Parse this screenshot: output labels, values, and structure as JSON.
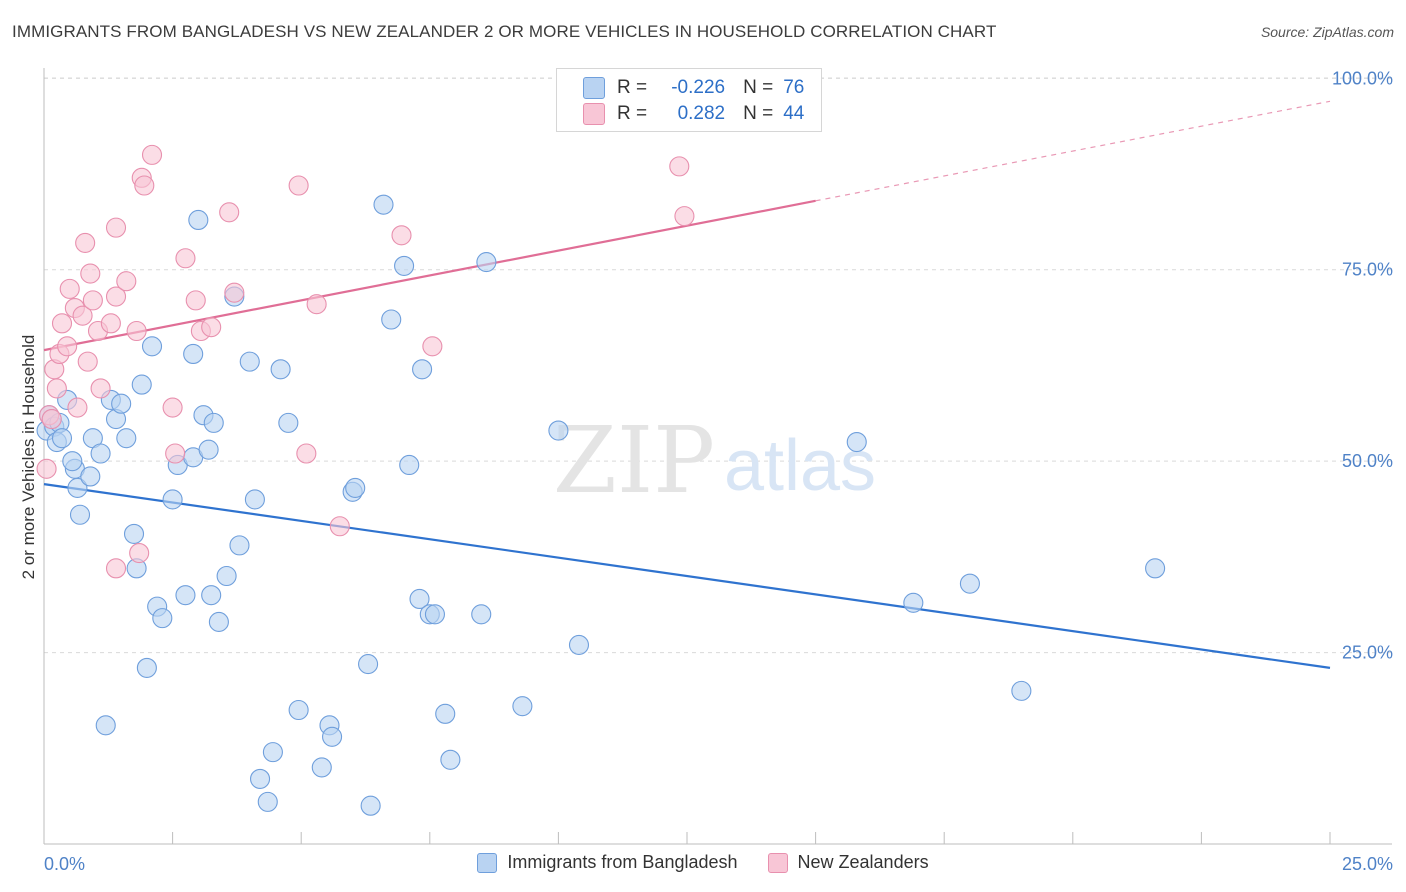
{
  "title": "IMMIGRANTS FROM BANGLADESH VS NEW ZEALANDER 2 OR MORE VEHICLES IN HOUSEHOLD CORRELATION CHART",
  "source": "Source: ZipAtlas.com",
  "watermark": {
    "zip": "ZIP",
    "atlas": "atlas"
  },
  "stats": {
    "r_label": "R =",
    "n_label": "N =",
    "rows": [
      {
        "r": "-0.226",
        "n": "76"
      },
      {
        "r": "0.282",
        "n": "44"
      }
    ]
  },
  "colors": {
    "blue_fill": "#b9d3f2",
    "blue_stroke": "#6f9fdc",
    "blue_line": "#2f73cf",
    "pink_fill": "#f8c6d6",
    "pink_stroke": "#e890ae",
    "pink_line": "#e06e96",
    "axis_text": "#4f82c7"
  },
  "chart_data": {
    "type": "scatter",
    "title": "IMMIGRANTS FROM BANGLADESH VS NEW ZEALANDER 2 OR MORE VEHICLES IN HOUSEHOLD CORRELATION CHART",
    "xlabel": "",
    "ylabel": "2 or more Vehicles in Household",
    "xlim": [
      0,
      25
    ],
    "ylim": [
      0,
      102
    ],
    "x_tick_labels": [
      "0.0%",
      "25.0%"
    ],
    "y_tick_labels": [
      "25.0%",
      "50.0%",
      "75.0%",
      "100.0%"
    ],
    "y_ticks": [
      25,
      50,
      75,
      100
    ],
    "grid": "horizontal dashed",
    "legend_position": "bottom",
    "series": [
      {
        "name": "Immigrants from Bangladesh",
        "r": -0.226,
        "n": 76,
        "trend": {
          "x": [
            0,
            25
          ],
          "y": [
            47.0,
            23.0
          ],
          "dashed_from_x": null
        },
        "points": [
          [
            0.05,
            54.0
          ],
          [
            0.1,
            56.0
          ],
          [
            0.15,
            55.5
          ],
          [
            0.2,
            54.5
          ],
          [
            0.25,
            52.5
          ],
          [
            0.3,
            55.0
          ],
          [
            0.35,
            53.0
          ],
          [
            0.45,
            58.0
          ],
          [
            0.6,
            49.0
          ],
          [
            0.65,
            46.5
          ],
          [
            0.7,
            43.0
          ],
          [
            0.9,
            48.0
          ],
          [
            0.95,
            53.0
          ],
          [
            1.1,
            51.0
          ],
          [
            1.3,
            58.0
          ],
          [
            1.4,
            55.5
          ],
          [
            1.5,
            57.5
          ],
          [
            1.6,
            53.0
          ],
          [
            1.75,
            40.5
          ],
          [
            1.8,
            36.0
          ],
          [
            1.9,
            60.0
          ],
          [
            2.1,
            65.0
          ],
          [
            2.2,
            31.0
          ],
          [
            2.3,
            29.5
          ],
          [
            2.5,
            45.0
          ],
          [
            2.6,
            49.5
          ],
          [
            2.75,
            32.5
          ],
          [
            2.9,
            50.5
          ],
          [
            2.9,
            64.0
          ],
          [
            3.0,
            81.5
          ],
          [
            3.1,
            56.0
          ],
          [
            3.2,
            51.5
          ],
          [
            3.25,
            32.5
          ],
          [
            3.3,
            55.0
          ],
          [
            3.4,
            29.0
          ],
          [
            3.55,
            35.0
          ],
          [
            3.7,
            71.5
          ],
          [
            3.8,
            39.0
          ],
          [
            4.0,
            63.0
          ],
          [
            4.1,
            45.0
          ],
          [
            4.2,
            8.5
          ],
          [
            4.35,
            5.5
          ],
          [
            4.45,
            12.0
          ],
          [
            4.6,
            62.0
          ],
          [
            4.75,
            55.0
          ],
          [
            4.95,
            17.5
          ],
          [
            5.4,
            10.0
          ],
          [
            5.55,
            15.5
          ],
          [
            5.6,
            14.0
          ],
          [
            6.0,
            46.0
          ],
          [
            6.05,
            46.5
          ],
          [
            6.3,
            23.5
          ],
          [
            6.35,
            5.0
          ],
          [
            6.6,
            83.5
          ],
          [
            6.75,
            68.5
          ],
          [
            7.0,
            75.5
          ],
          [
            7.1,
            49.5
          ],
          [
            7.3,
            32.0
          ],
          [
            7.35,
            62.0
          ],
          [
            7.5,
            30.0
          ],
          [
            7.6,
            30.0
          ],
          [
            7.8,
            17.0
          ],
          [
            7.9,
            11.0
          ],
          [
            8.5,
            30.0
          ],
          [
            8.6,
            76.0
          ],
          [
            9.3,
            18.0
          ],
          [
            10.0,
            54.0
          ],
          [
            10.4,
            26.0
          ],
          [
            15.8,
            52.5
          ],
          [
            16.9,
            31.5
          ],
          [
            18.0,
            34.0
          ],
          [
            19.0,
            20.0
          ],
          [
            21.6,
            36.0
          ],
          [
            0.55,
            50.0
          ],
          [
            1.2,
            15.5
          ],
          [
            2.0,
            23.0
          ]
        ]
      },
      {
        "name": "New Zealanders",
        "r": 0.282,
        "n": 44,
        "trend": {
          "x": [
            0,
            25
          ],
          "y": [
            64.5,
            97.0
          ],
          "dashed_from_x": 15.0
        },
        "points": [
          [
            0.05,
            49.0
          ],
          [
            0.1,
            56.0
          ],
          [
            0.15,
            55.5
          ],
          [
            0.2,
            62.0
          ],
          [
            0.25,
            59.5
          ],
          [
            0.3,
            64.0
          ],
          [
            0.35,
            68.0
          ],
          [
            0.45,
            65.0
          ],
          [
            0.5,
            72.5
          ],
          [
            0.6,
            70.0
          ],
          [
            0.65,
            57.0
          ],
          [
            0.75,
            69.0
          ],
          [
            0.8,
            78.5
          ],
          [
            0.85,
            63.0
          ],
          [
            0.9,
            74.5
          ],
          [
            0.95,
            71.0
          ],
          [
            1.05,
            67.0
          ],
          [
            1.1,
            59.5
          ],
          [
            1.3,
            68.0
          ],
          [
            1.4,
            71.5
          ],
          [
            1.4,
            80.5
          ],
          [
            1.6,
            73.5
          ],
          [
            1.8,
            67.0
          ],
          [
            1.9,
            87.0
          ],
          [
            1.95,
            86.0
          ],
          [
            2.1,
            90.0
          ],
          [
            2.5,
            57.0
          ],
          [
            2.55,
            51.0
          ],
          [
            2.75,
            76.5
          ],
          [
            2.95,
            71.0
          ],
          [
            3.05,
            67.0
          ],
          [
            3.25,
            67.5
          ],
          [
            3.6,
            82.5
          ],
          [
            3.7,
            72.0
          ],
          [
            4.95,
            86.0
          ],
          [
            5.1,
            51.0
          ],
          [
            5.3,
            70.5
          ],
          [
            5.75,
            41.5
          ],
          [
            6.95,
            79.5
          ],
          [
            7.55,
            65.0
          ],
          [
            12.35,
            88.5
          ],
          [
            12.45,
            82.0
          ],
          [
            1.85,
            38.0
          ],
          [
            1.4,
            36.0
          ]
        ]
      }
    ]
  }
}
